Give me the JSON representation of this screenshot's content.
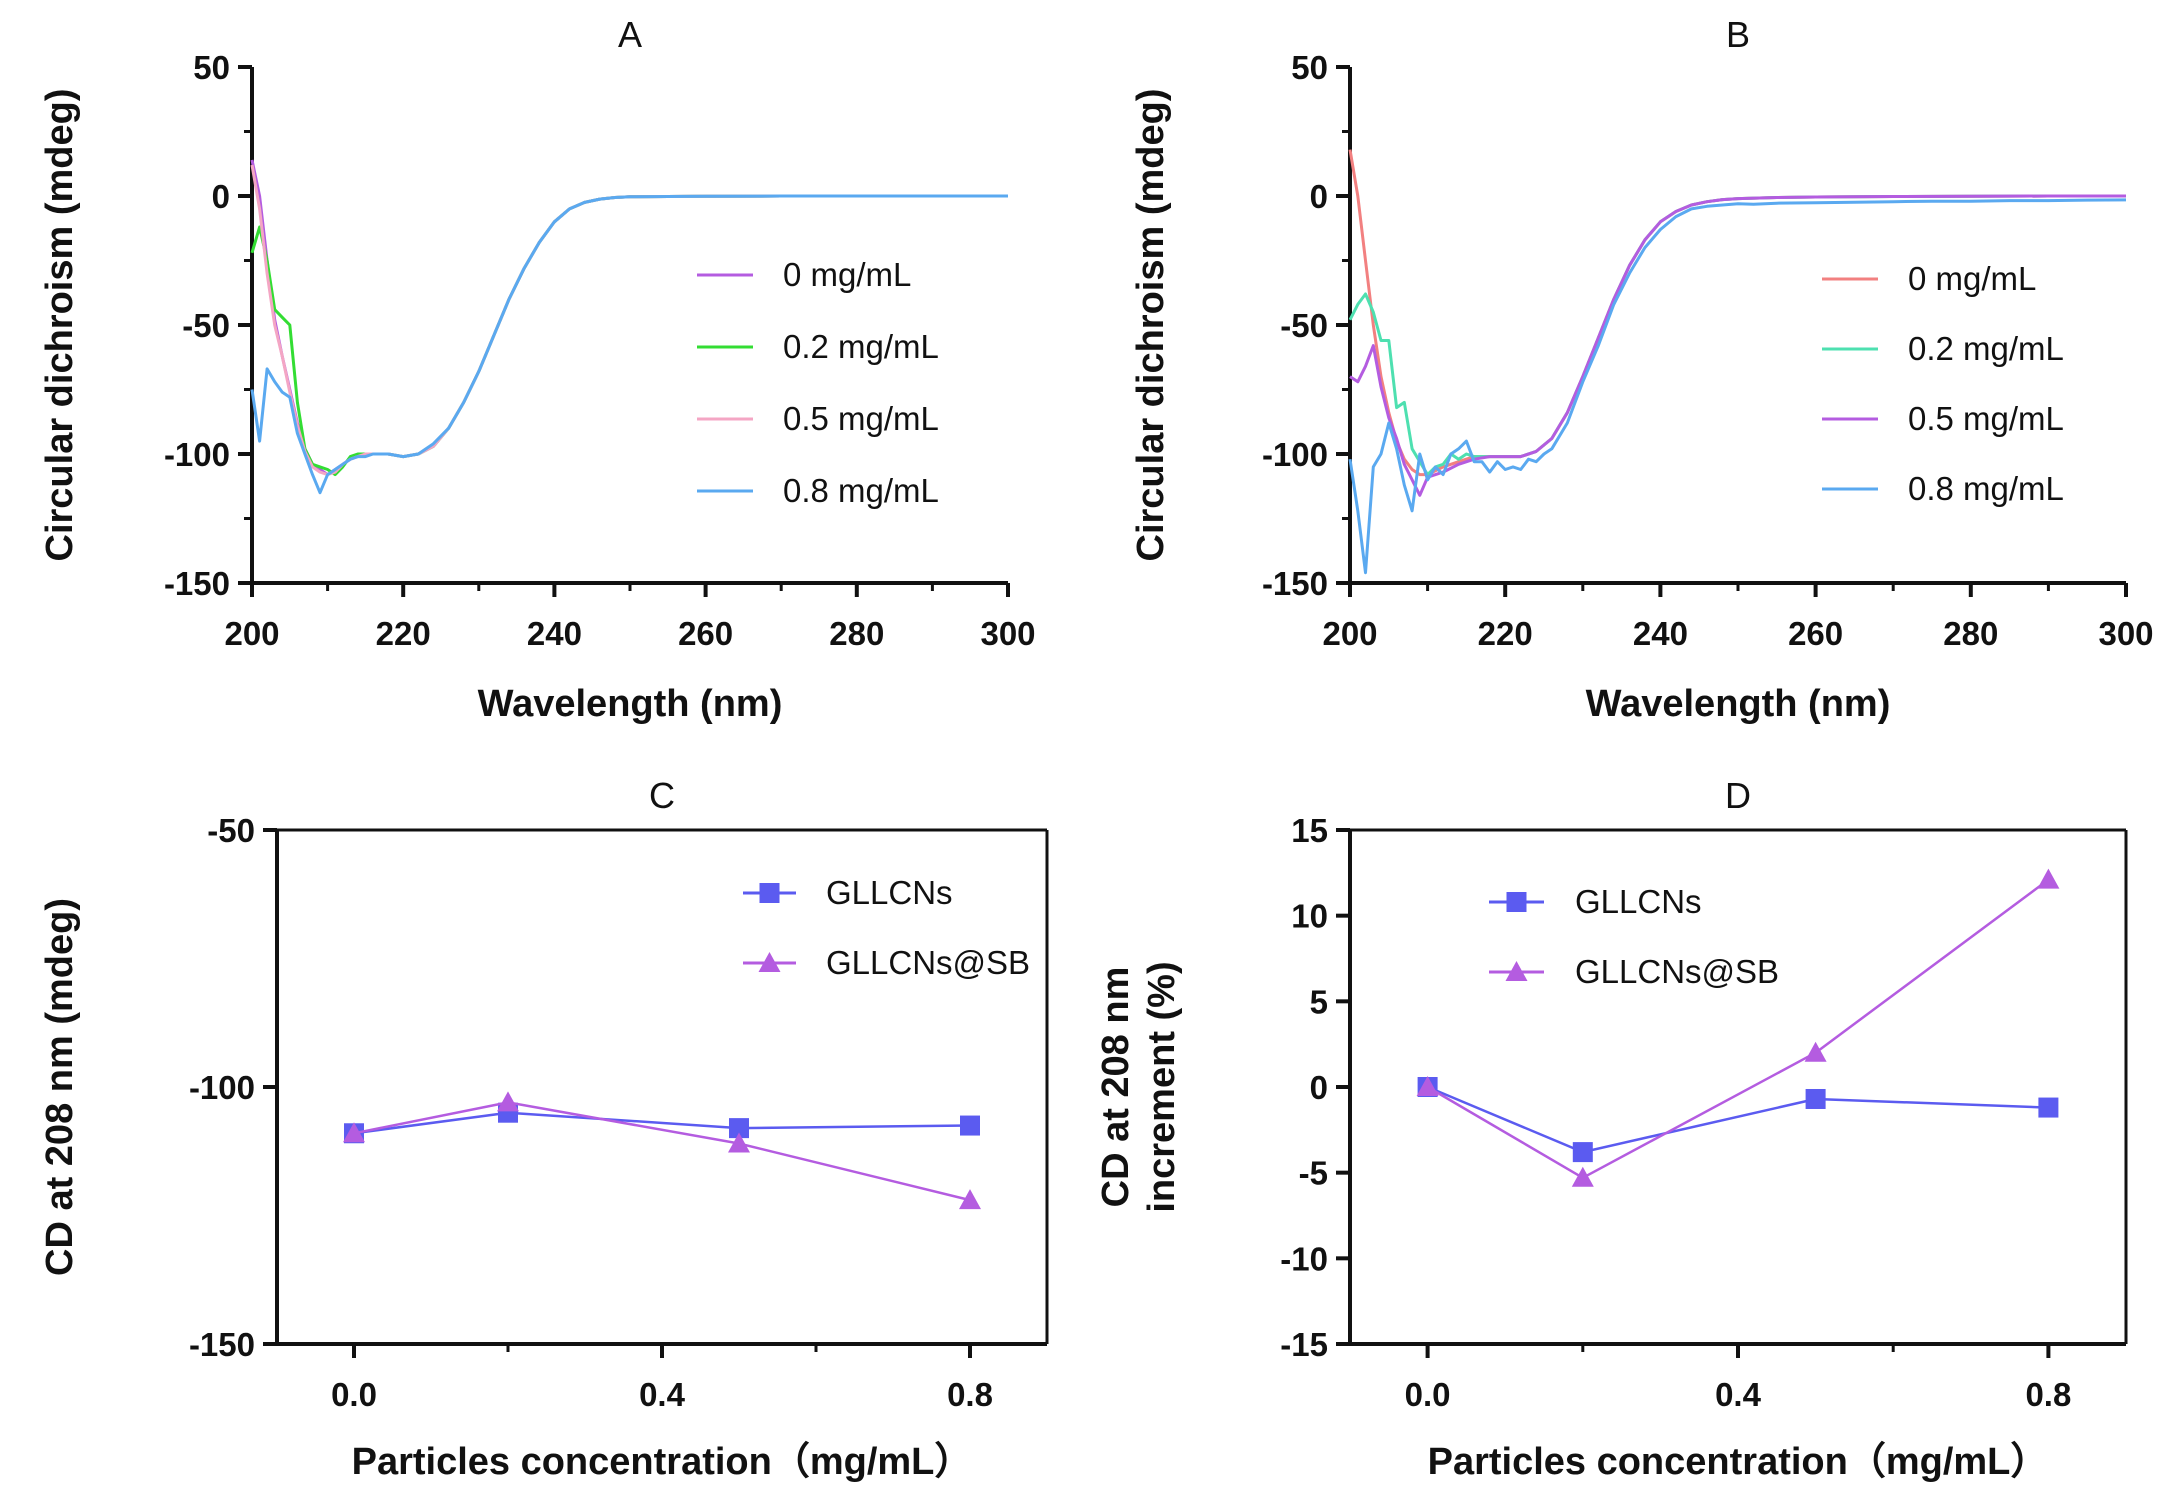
{
  "figure_title": "",
  "chart_data": [
    {
      "id": "A",
      "type": "line",
      "title": "A",
      "xlabel": "Wavelength (nm)",
      "ylabel": "Circular dichroism (mdeg)",
      "xlim": [
        200,
        300
      ],
      "ylim": [
        -150,
        50
      ],
      "xticks": [
        200,
        220,
        240,
        260,
        280,
        300
      ],
      "yticks": [
        -150,
        -100,
        -50,
        0,
        50
      ],
      "legend": "right-middle",
      "series": [
        {
          "name": "0 mg/mL",
          "color": "#b45ce0",
          "x": [
            200,
            201,
            202,
            203,
            204,
            205,
            206,
            207,
            208,
            209,
            210,
            211,
            212,
            213,
            214,
            215,
            216,
            218,
            220,
            222,
            224,
            226,
            228,
            230,
            232,
            234,
            236,
            238,
            240,
            242,
            244,
            246,
            248,
            250,
            255,
            260,
            270,
            280,
            290,
            300
          ],
          "y": [
            14,
            0,
            -25,
            -48,
            -62,
            -75,
            -88,
            -98,
            -104,
            -106,
            -108,
            -106,
            -104,
            -102,
            -101,
            -100,
            -100,
            -100,
            -101,
            -100,
            -97,
            -90,
            -80,
            -68,
            -54,
            -40,
            -28,
            -18,
            -10,
            -5,
            -2.5,
            -1.2,
            -0.6,
            -0.3,
            -0.2,
            -0.1,
            0,
            0,
            0,
            0
          ]
        },
        {
          "name": "0.2 mg/mL",
          "color": "#33dd33",
          "x": [
            200,
            201,
            202,
            203,
            204,
            205,
            206,
            207,
            208,
            209,
            210,
            211,
            212,
            213,
            214,
            215,
            216,
            218,
            220,
            222,
            224,
            226,
            228,
            230,
            232,
            234,
            236,
            238,
            240,
            242,
            244,
            246,
            248,
            250,
            255,
            260,
            270,
            280,
            290,
            300
          ],
          "y": [
            -22,
            -12,
            -25,
            -44,
            -47,
            -50,
            -80,
            -98,
            -104,
            -105,
            -106,
            -108,
            -105,
            -101,
            -100,
            -100,
            -100,
            -100,
            -101,
            -100,
            -97,
            -90,
            -80,
            -68,
            -54,
            -40,
            -28,
            -18,
            -10,
            -5,
            -2.5,
            -1.2,
            -0.6,
            -0.3,
            -0.2,
            -0.1,
            0,
            0,
            0,
            0
          ]
        },
        {
          "name": "0.5 mg/mL",
          "color": "#f4a6c4",
          "x": [
            200,
            201,
            202,
            203,
            204,
            205,
            206,
            207,
            208,
            209,
            210,
            211,
            212,
            213,
            214,
            215,
            216,
            218,
            220,
            222,
            224,
            226,
            228,
            230,
            232,
            234,
            236,
            238,
            240,
            242,
            244,
            246,
            248,
            250,
            255,
            260,
            270,
            280,
            290,
            300
          ],
          "y": [
            12,
            -5,
            -30,
            -50,
            -62,
            -76,
            -89,
            -99,
            -105,
            -107,
            -108,
            -107,
            -104,
            -102,
            -101,
            -100,
            -100,
            -100,
            -101,
            -100,
            -97,
            -90,
            -80,
            -68,
            -54,
            -40,
            -28,
            -18,
            -10,
            -5,
            -2.5,
            -1.2,
            -0.6,
            -0.3,
            -0.2,
            -0.1,
            0,
            0,
            0,
            0
          ]
        },
        {
          "name": "0.8 mg/mL",
          "color": "#5aa9f0",
          "x": [
            200,
            201,
            202,
            203,
            204,
            205,
            206,
            207,
            208,
            209,
            210,
            211,
            212,
            213,
            214,
            215,
            216,
            218,
            220,
            222,
            224,
            226,
            228,
            230,
            232,
            234,
            236,
            238,
            240,
            242,
            244,
            246,
            248,
            250,
            255,
            260,
            270,
            280,
            290,
            300
          ],
          "y": [
            -75,
            -95,
            -67,
            -72,
            -76,
            -78,
            -92,
            -100,
            -108,
            -115,
            -108,
            -106,
            -104,
            -102,
            -101,
            -101,
            -100,
            -100,
            -101,
            -100,
            -96,
            -90,
            -80,
            -68,
            -54,
            -40,
            -28,
            -18,
            -10,
            -5,
            -2.5,
            -1.2,
            -0.6,
            -0.3,
            -0.2,
            -0.1,
            0,
            0,
            0,
            0
          ]
        }
      ]
    },
    {
      "id": "B",
      "type": "line",
      "title": "B",
      "xlabel": "Wavelength (nm)",
      "ylabel": "Circular dichroism (mdeg)",
      "xlim": [
        200,
        300
      ],
      "ylim": [
        -150,
        50
      ],
      "xticks": [
        200,
        220,
        240,
        260,
        280,
        300
      ],
      "yticks": [
        -150,
        -100,
        -50,
        0,
        50
      ],
      "legend": "right-middle",
      "series": [
        {
          "name": "0 mg/mL",
          "color": "#f28080",
          "x": [
            200,
            201,
            202,
            203,
            204,
            205,
            206,
            207,
            208,
            209,
            210,
            212,
            214,
            216,
            218,
            220,
            222,
            224,
            226,
            228,
            230,
            232,
            234,
            236,
            238,
            240,
            242,
            244,
            246,
            248,
            250,
            255,
            260,
            270,
            280,
            290,
            300
          ],
          "y": [
            18,
            0,
            -25,
            -50,
            -70,
            -84,
            -95,
            -102,
            -106,
            -108,
            -108,
            -105,
            -103,
            -101,
            -101,
            -101,
            -101,
            -99,
            -94,
            -84,
            -70,
            -55,
            -40,
            -27,
            -17,
            -10,
            -6,
            -3.5,
            -2.2,
            -1.4,
            -1,
            -0.6,
            -0.4,
            -0.2,
            -0.1,
            0,
            0
          ]
        },
        {
          "name": "0.2 mg/mL",
          "color": "#4ee0b0",
          "x": [
            200,
            201,
            202,
            203,
            204,
            205,
            206,
            207,
            208,
            209,
            210,
            211,
            212,
            213,
            214,
            215,
            216,
            218,
            220,
            222,
            224,
            226,
            228,
            230,
            232,
            234,
            236,
            238,
            240,
            242,
            244,
            246,
            248,
            250,
            255,
            260,
            270,
            280,
            290,
            300
          ],
          "y": [
            -48,
            -42,
            -38,
            -45,
            -56,
            -56,
            -82,
            -80,
            -98,
            -103,
            -108,
            -105,
            -104,
            -100,
            -102,
            -100,
            -101,
            -101,
            -101,
            -101,
            -99,
            -94,
            -84,
            -70,
            -55,
            -40,
            -27,
            -17,
            -10,
            -6,
            -3.5,
            -2.2,
            -1.4,
            -1,
            -0.6,
            -0.4,
            -0.2,
            -0.1,
            0,
            0
          ]
        },
        {
          "name": "0.5 mg/mL",
          "color": "#b45ce0",
          "x": [
            200,
            201,
            202,
            203,
            204,
            205,
            206,
            207,
            208,
            209,
            210,
            212,
            214,
            216,
            218,
            220,
            222,
            224,
            226,
            228,
            230,
            232,
            234,
            236,
            238,
            240,
            242,
            244,
            246,
            248,
            250,
            255,
            260,
            270,
            280,
            290,
            300
          ],
          "y": [
            -70,
            -72,
            -66,
            -58,
            -74,
            -86,
            -94,
            -104,
            -110,
            -116,
            -109,
            -107,
            -104,
            -102,
            -101,
            -101,
            -101,
            -99,
            -94,
            -84,
            -70,
            -55,
            -40,
            -27,
            -17,
            -10,
            -6,
            -3.5,
            -2.2,
            -1.4,
            -1,
            -0.6,
            -0.4,
            -0.2,
            -0.1,
            0,
            0
          ]
        },
        {
          "name": "0.8 mg/mL",
          "color": "#5aa9f0",
          "x": [
            200,
            201,
            202,
            203,
            204,
            205,
            206,
            207,
            208,
            209,
            210,
            211,
            212,
            213,
            214,
            215,
            216,
            217,
            218,
            219,
            220,
            221,
            222,
            223,
            224,
            225,
            226,
            228,
            230,
            232,
            234,
            236,
            238,
            240,
            242,
            244,
            246,
            248,
            250,
            252,
            255,
            260,
            265,
            270,
            275,
            280,
            285,
            290,
            295,
            300
          ],
          "y": [
            -102,
            -122,
            -146,
            -105,
            -100,
            -88,
            -98,
            -112,
            -122,
            -100,
            -110,
            -105,
            -108,
            -100,
            -98,
            -95,
            -103,
            -103,
            -107,
            -103,
            -106,
            -105,
            -106,
            -102,
            -103,
            -100,
            -98,
            -88,
            -72,
            -58,
            -42,
            -30,
            -20,
            -13,
            -8,
            -5,
            -4,
            -3.5,
            -3,
            -3.2,
            -2.8,
            -2.6,
            -2.4,
            -2.2,
            -2,
            -2,
            -1.8,
            -1.8,
            -1.6,
            -1.5
          ]
        }
      ]
    },
    {
      "id": "C",
      "type": "line",
      "title": "C",
      "xlabel": "Particles concentration（mg/mL）",
      "ylabel": "CD at 208 nm (mdeg)",
      "xlim": [
        -0.1,
        0.9
      ],
      "ylim": [
        -150,
        -50
      ],
      "xticks": [
        0.0,
        0.4,
        0.8
      ],
      "xtick_labels": [
        "0.0",
        "0.4",
        "0.8"
      ],
      "minor_xticks": [
        0.2,
        0.6
      ],
      "yticks": [
        -150,
        -100,
        -50
      ],
      "legend": "top-right",
      "series": [
        {
          "name": "GLLCNs",
          "color": "#5b5bf0",
          "marker": "square",
          "x": [
            0.0,
            0.2,
            0.5,
            0.8
          ],
          "y": [
            -109,
            -105,
            -108,
            -107.5
          ]
        },
        {
          "name": "GLLCNs@SB",
          "color": "#b45ce0",
          "marker": "triangle",
          "x": [
            0.0,
            0.2,
            0.5,
            0.8
          ],
          "y": [
            -109,
            -103,
            -111,
            -122
          ]
        }
      ]
    },
    {
      "id": "D",
      "type": "line",
      "title": "D",
      "xlabel": "Particles concentration（mg/mL）",
      "ylabel": "CD at 208 nm increment (%)",
      "ylabel_lines": [
        "CD at 208 nm",
        "increment (%)"
      ],
      "xlim": [
        -0.1,
        0.9
      ],
      "ylim": [
        -15,
        15
      ],
      "xticks": [
        0.0,
        0.4,
        0.8
      ],
      "xtick_labels": [
        "0.0",
        "0.4",
        "0.8"
      ],
      "minor_xticks": [
        0.2,
        0.6
      ],
      "yticks": [
        -15,
        -10,
        -5,
        0,
        5,
        10,
        15
      ],
      "legend": "top-left",
      "series": [
        {
          "name": "GLLCNs",
          "color": "#5b5bf0",
          "marker": "square",
          "x": [
            0.0,
            0.2,
            0.5,
            0.8
          ],
          "y": [
            0,
            -3.8,
            -0.7,
            -1.2
          ]
        },
        {
          "name": "GLLCNs@SB",
          "color": "#b45ce0",
          "marker": "triangle",
          "x": [
            0.0,
            0.2,
            0.5,
            0.8
          ],
          "y": [
            0,
            -5.3,
            2.0,
            12.1
          ]
        }
      ]
    }
  ]
}
